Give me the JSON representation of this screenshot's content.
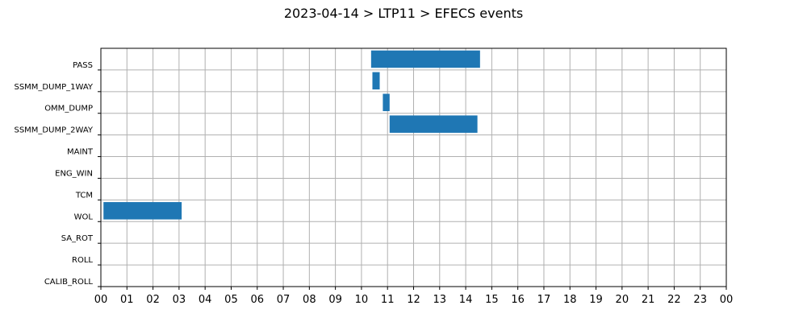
{
  "chart_data": {
    "type": "bar",
    "orientation": "horizontal",
    "title": "2023-04-14 > LTP11 > EFECS events",
    "xlabel": "",
    "ylabel": "",
    "xlim": [
      0,
      24
    ],
    "x_ticks": [
      "00",
      "01",
      "02",
      "03",
      "04",
      "05",
      "06",
      "07",
      "08",
      "09",
      "10",
      "11",
      "12",
      "13",
      "14",
      "15",
      "16",
      "17",
      "18",
      "19",
      "20",
      "21",
      "22",
      "23",
      "00"
    ],
    "categories": [
      "PASS",
      "SSMM_DUMP_1WAY",
      "OMM_DUMP",
      "SSMM_DUMP_2WAY",
      "MAINT",
      "ENG_WIN",
      "TCM",
      "WOL",
      "SA_ROT",
      "ROLL",
      "CALIB_ROLL"
    ],
    "grid": true,
    "bar_color": "#1f77b4",
    "events": [
      {
        "category": "PASS",
        "start": 10.37,
        "end": 14.55
      },
      {
        "category": "SSMM_DUMP_1WAY",
        "start": 10.42,
        "end": 10.7
      },
      {
        "category": "OMM_DUMP",
        "start": 10.82,
        "end": 11.08
      },
      {
        "category": "SSMM_DUMP_2WAY",
        "start": 11.08,
        "end": 14.45
      },
      {
        "category": "WOL",
        "start": 0.1,
        "end": 3.1
      }
    ]
  }
}
